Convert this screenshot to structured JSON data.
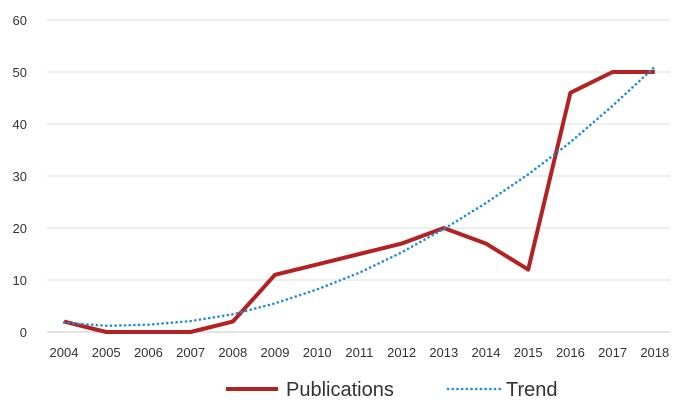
{
  "chart_data": {
    "type": "line",
    "title": "",
    "xlabel": "",
    "ylabel": "",
    "categories": [
      "2004",
      "2005",
      "2006",
      "2007",
      "2008",
      "2009",
      "2010",
      "2011",
      "2012",
      "2013",
      "2014",
      "2015",
      "2016",
      "2017",
      "2018"
    ],
    "ylim": [
      0,
      60
    ],
    "yticks": [
      0,
      10,
      20,
      30,
      40,
      50,
      60
    ],
    "grid": true,
    "legend_position": "bottom",
    "series": [
      {
        "name": "Publications",
        "style": "solid",
        "color": "#b22222",
        "values": [
          2,
          0,
          0,
          0,
          2,
          11,
          13,
          15,
          17,
          20,
          17,
          12,
          46,
          50,
          50
        ]
      },
      {
        "name": "Trend",
        "style": "dotted",
        "color": "#1f8fd6",
        "values": [
          1.8,
          1.2,
          1.4,
          2.1,
          3.4,
          5.5,
          8.2,
          11.4,
          15.3,
          19.8,
          24.8,
          30.3,
          36.5,
          43.5,
          51.0
        ]
      }
    ]
  }
}
